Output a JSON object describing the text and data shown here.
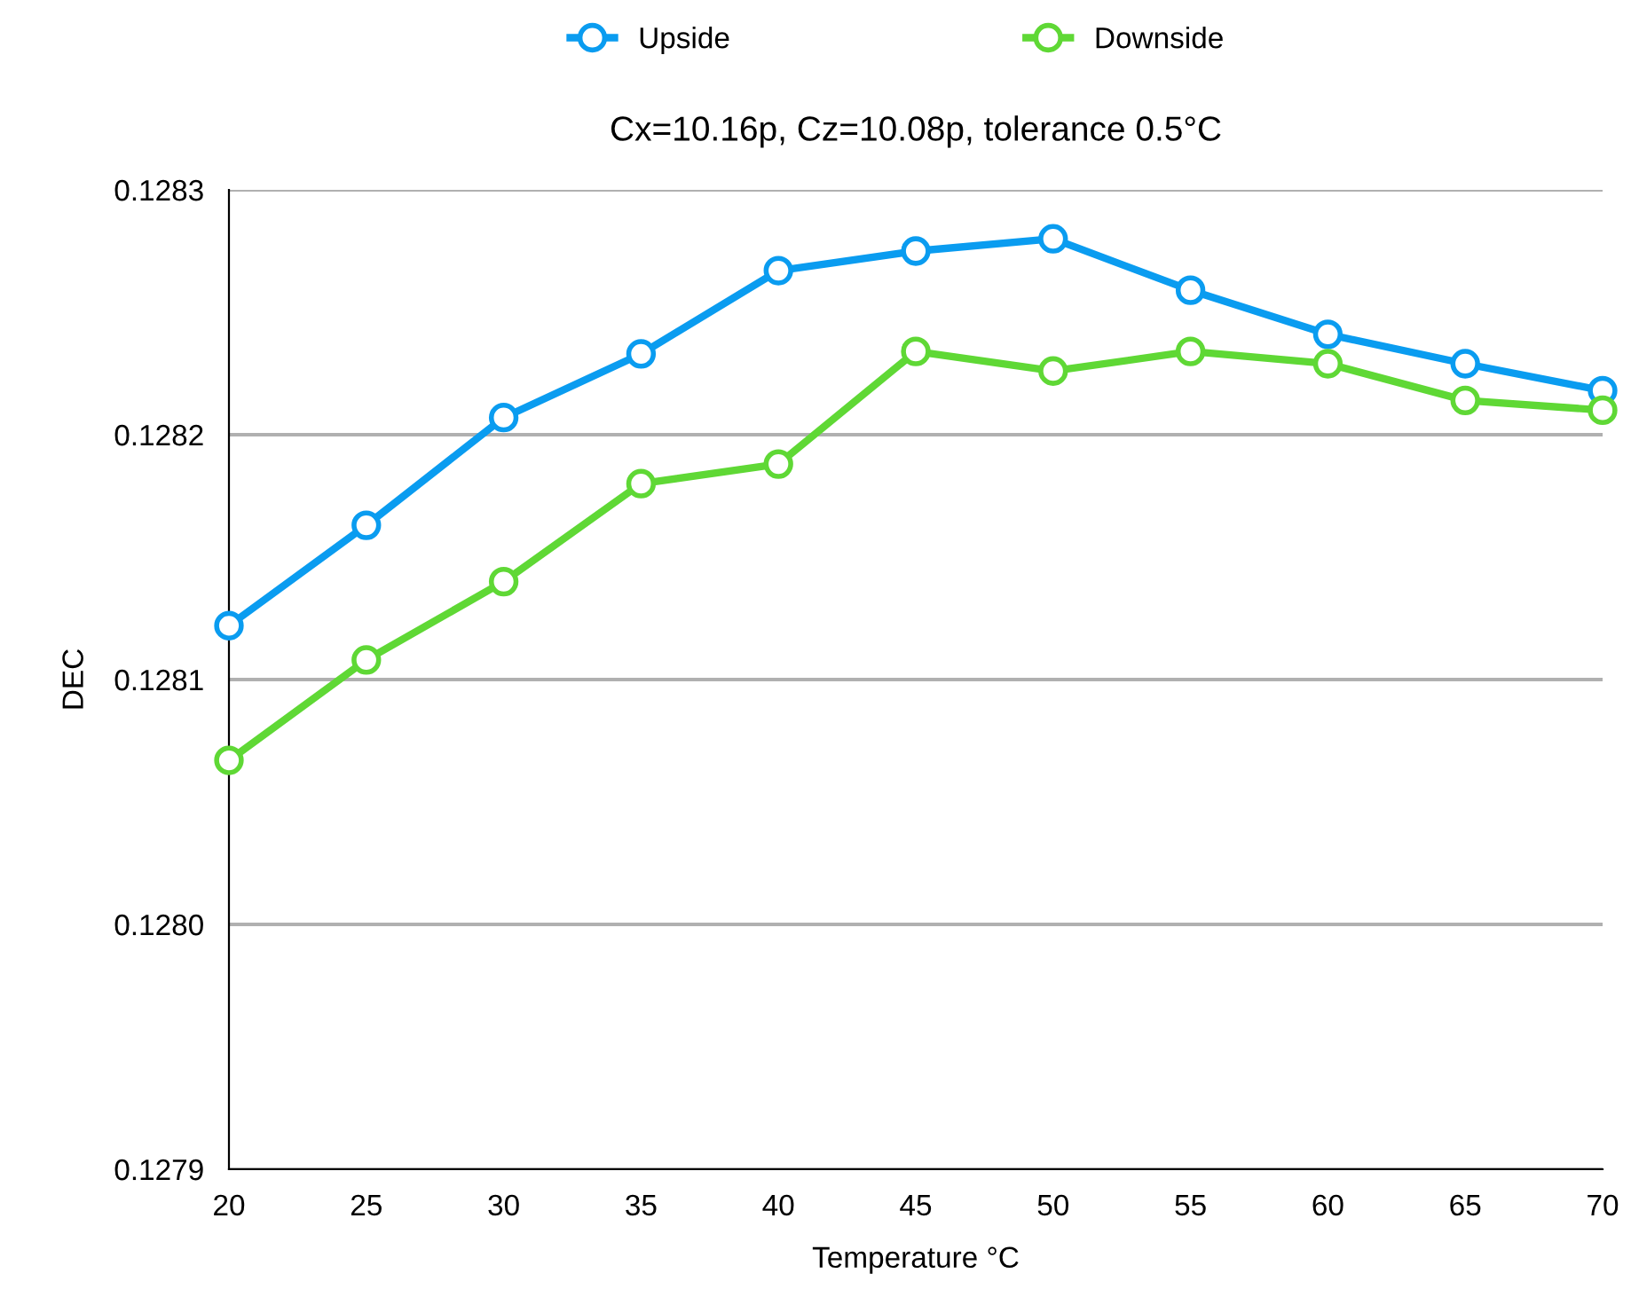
{
  "chart_data": {
    "type": "line",
    "title": "Cx=10.16p, Cz=10.08p, tolerance 0.5°C",
    "xlabel": "Temperature °C",
    "ylabel": "DEC",
    "x": [
      20,
      25,
      30,
      35,
      40,
      45,
      50,
      55,
      60,
      65,
      70
    ],
    "series": [
      {
        "name": "Upside",
        "color": "#0a9cf0",
        "values": [
          0.128122,
          0.128163,
          0.128207,
          0.128233,
          0.128267,
          0.128275,
          0.12828,
          0.128259,
          0.128241,
          0.128229,
          0.128218
        ]
      },
      {
        "name": "Downside",
        "color": "#5fd835",
        "values": [
          0.128067,
          0.128108,
          0.12814,
          0.12818,
          0.128188,
          0.128234,
          0.128226,
          0.128234,
          0.128229,
          0.128214,
          0.12821
        ]
      }
    ],
    "xlim": [
      20,
      70
    ],
    "xticks": [
      20,
      25,
      30,
      35,
      40,
      45,
      50,
      55,
      60,
      65,
      70
    ],
    "ylim": [
      0.1279,
      0.1283
    ],
    "yticks": [
      {
        "value": 0.1279,
        "label": "0.1279"
      },
      {
        "value": 0.128,
        "label": "0.1280"
      },
      {
        "value": 0.1281,
        "label": "0.1281"
      },
      {
        "value": 0.1282,
        "label": "0.1282"
      },
      {
        "value": 0.1283,
        "label": "0.1283"
      }
    ],
    "grid": "y",
    "legend": "top",
    "marker": "circle",
    "line_style": "solid"
  }
}
